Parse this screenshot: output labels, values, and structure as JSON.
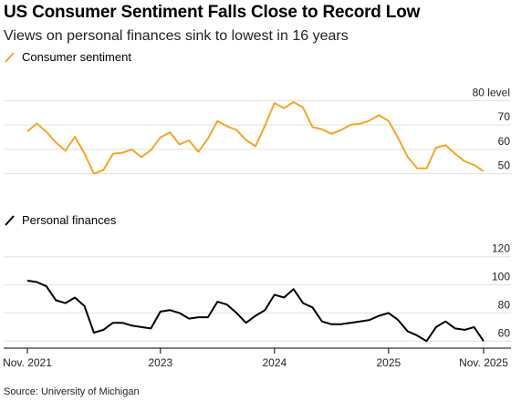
{
  "header": {
    "title": "US Consumer Sentiment Falls Close to Record Low",
    "subtitle": "Views on personal finances sink to lowest in 16 years"
  },
  "footer": {
    "source": "Source: University of Michigan"
  },
  "colors": {
    "sentiment": "#f5a623",
    "finances": "#000000",
    "grid": "#e0e0e0",
    "axis": "#000000"
  },
  "chart_data": [
    {
      "type": "line",
      "legend": "Consumer sentiment",
      "unit_label": "level",
      "ylim": [
        45,
        85
      ],
      "yticks": [
        50,
        60,
        70,
        80
      ],
      "ytick_labels": [
        "50",
        "60",
        "70",
        "80 level"
      ],
      "grid": true,
      "x": [
        "Nov. 2021",
        "Dec. 2021",
        "Jan. 2022",
        "Feb. 2022",
        "Mar. 2022",
        "Apr. 2022",
        "May 2022",
        "Jun. 2022",
        "Jul. 2022",
        "Aug. 2022",
        "Sep. 2022",
        "Oct. 2022",
        "Nov. 2022",
        "Dec. 2022",
        "Jan. 2023",
        "Feb. 2023",
        "Mar. 2023",
        "Apr. 2023",
        "May 2023",
        "Jun. 2023",
        "Jul. 2023",
        "Aug. 2023",
        "Sep. 2023",
        "Oct. 2023",
        "Nov. 2023",
        "Dec. 2023",
        "Jan. 2024",
        "Feb. 2024",
        "Mar. 2024",
        "Apr. 2024",
        "May 2024",
        "Jun. 2024",
        "Jul. 2024",
        "Aug. 2024",
        "Sep. 2024",
        "Oct. 2024",
        "Nov. 2024",
        "Dec. 2024",
        "Jan. 2025",
        "Feb. 2025",
        "Mar. 2025",
        "Apr. 2025",
        "May 2025",
        "Jun. 2025",
        "Jul. 2025",
        "Aug. 2025",
        "Sep. 2025",
        "Oct. 2025",
        "Nov. 2025"
      ],
      "series": [
        {
          "name": "Consumer sentiment",
          "values": [
            67.4,
            70.6,
            67.2,
            62.8,
            59.4,
            65.2,
            58.4,
            50.0,
            51.5,
            58.2,
            58.6,
            59.9,
            56.8,
            59.7,
            64.9,
            67.0,
            62.0,
            63.7,
            59.0,
            64.4,
            71.6,
            69.5,
            67.9,
            63.8,
            61.3,
            69.7,
            79.0,
            76.9,
            79.4,
            77.2,
            69.1,
            68.2,
            66.4,
            67.9,
            70.1,
            70.5,
            71.8,
            74.0,
            71.7,
            64.7,
            57.0,
            52.2,
            52.2,
            60.7,
            61.7,
            58.2,
            55.1,
            53.6,
            51.0
          ]
        }
      ]
    },
    {
      "type": "line",
      "legend": "Personal finances",
      "ylim": [
        55,
        125
      ],
      "yticks": [
        60,
        80,
        100,
        120
      ],
      "ytick_labels": [
        "60",
        "80",
        "100",
        "120"
      ],
      "grid": true,
      "xtick_labels": [
        "Nov. 2021",
        "2023",
        "2024",
        "2025",
        "Nov. 2025"
      ],
      "x": [
        "Nov. 2021",
        "Dec. 2021",
        "Jan. 2022",
        "Feb. 2022",
        "Mar. 2022",
        "Apr. 2022",
        "May 2022",
        "Jun. 2022",
        "Jul. 2022",
        "Aug. 2022",
        "Sep. 2022",
        "Oct. 2022",
        "Nov. 2022",
        "Dec. 2022",
        "Jan. 2023",
        "Feb. 2023",
        "Mar. 2023",
        "Apr. 2023",
        "May 2023",
        "Jun. 2023",
        "Jul. 2023",
        "Aug. 2023",
        "Sep. 2023",
        "Oct. 2023",
        "Nov. 2023",
        "Dec. 2023",
        "Jan. 2024",
        "Feb. 2024",
        "Mar. 2024",
        "Apr. 2024",
        "May 2024",
        "Jun. 2024",
        "Jul. 2024",
        "Aug. 2024",
        "Sep. 2024",
        "Oct. 2024",
        "Nov. 2024",
        "Dec. 2024",
        "Jan. 2025",
        "Feb. 2025",
        "Mar. 2025",
        "Apr. 2025",
        "May 2025",
        "Jun. 2025",
        "Jul. 2025",
        "Aug. 2025",
        "Sep. 2025",
        "Oct. 2025",
        "Nov. 2025"
      ],
      "series": [
        {
          "name": "Personal finances",
          "values": [
            103,
            102,
            99,
            89,
            87,
            91,
            85,
            66,
            68,
            73,
            73,
            71,
            70,
            69,
            81,
            82,
            80,
            76,
            77,
            77,
            88,
            86,
            80,
            73,
            78,
            82,
            93,
            91,
            97,
            87,
            84,
            74,
            72,
            72,
            73,
            74,
            75,
            78,
            80,
            75,
            67,
            64,
            60,
            70,
            74,
            69,
            68,
            70,
            60
          ]
        }
      ]
    }
  ]
}
